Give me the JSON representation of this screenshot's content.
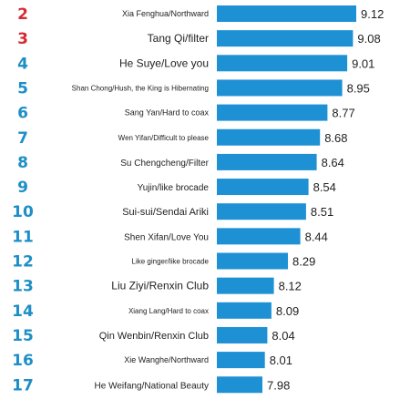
{
  "chart_data": {
    "type": "bar",
    "orientation": "horizontal",
    "title": "",
    "xlabel": "",
    "ylabel": "",
    "ranks": [
      "2",
      "3",
      "4",
      "5",
      "6",
      "7",
      "8",
      "9",
      "10",
      "11",
      "12",
      "13",
      "14",
      "15",
      "16",
      "17"
    ],
    "categories": [
      "Xia Fenghua/Northward",
      "Tang Qi/filter",
      "He Suye/Love you",
      "Shan Chong/Hush, the King is Hibernating",
      "Sang Yan/Hard to coax",
      "Wen Yifan/Difficult to please",
      "Su Chengcheng/Filter",
      "Yujin/like brocade",
      "Sui-sui/Sendai Ariki",
      "Shen Xifan/Love You",
      "Like ginger/like brocade",
      "Liu Ziyi/Renxin Club",
      "Xiang Lang/Hard to coax",
      "Qin Wenbin/Renxin Club",
      "Xie Wanghe/Northward",
      "He Weifang/National Beauty"
    ],
    "values": [
      9.12,
      9.08,
      9.01,
      8.95,
      8.77,
      8.68,
      8.64,
      8.54,
      8.51,
      8.44,
      8.29,
      8.12,
      8.09,
      8.04,
      8.01,
      7.98
    ],
    "value_labels": [
      "9.12",
      "9.08",
      "9.01",
      "8.95",
      "8.77",
      "8.68",
      "8.64",
      "8.54",
      "8.51",
      "8.44",
      "8.29",
      "8.12",
      "8.09",
      "8.04",
      "8.01",
      "7.98"
    ],
    "label_sizes": [
      9,
      12,
      12,
      8,
      9,
      8,
      10,
      10,
      11,
      10,
      8,
      12,
      8,
      11,
      9,
      10
    ],
    "bar_color": "#1e90d4",
    "rank_colors": [
      "#d62a32",
      "#d62a32",
      "#1e8fc6",
      "#1e8fc6",
      "#1e8fc6",
      "#1e8fc6",
      "#1e8fc6",
      "#1e8fc6",
      "#1e8fc6",
      "#1e8fc6",
      "#1e8fc6",
      "#1e8fc6",
      "#1e8fc6",
      "#1e8fc6",
      "#1e8fc6",
      "#1e8fc6"
    ]
  }
}
